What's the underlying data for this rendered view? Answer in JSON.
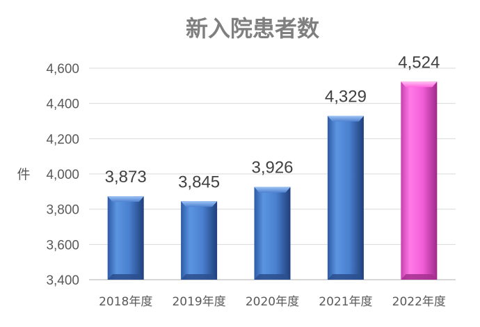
{
  "chart_data": {
    "type": "bar",
    "title": "新入院患者数",
    "ylabel": "件",
    "xlabel": "",
    "categories": [
      "2018年度",
      "2019年度",
      "2020年度",
      "2021年度",
      "2022年度"
    ],
    "values": [
      3873,
      3845,
      3926,
      4329,
      4524
    ],
    "value_labels": [
      "3,873",
      "3,845",
      "3,926",
      "4,329",
      "4,524"
    ],
    "ylim": [
      3400,
      4600
    ],
    "yticks": [
      3400,
      3600,
      3800,
      4000,
      4200,
      4400,
      4600
    ],
    "ytick_labels": [
      "3,400",
      "3,600",
      "3,800",
      "4,000",
      "4,200",
      "4,400",
      "4,600"
    ],
    "grid": true,
    "legend": "none",
    "colors": {
      "default_bar": "#4f81d0",
      "highlight_bar": "#ff66dd",
      "highlight_index": 4
    }
  }
}
